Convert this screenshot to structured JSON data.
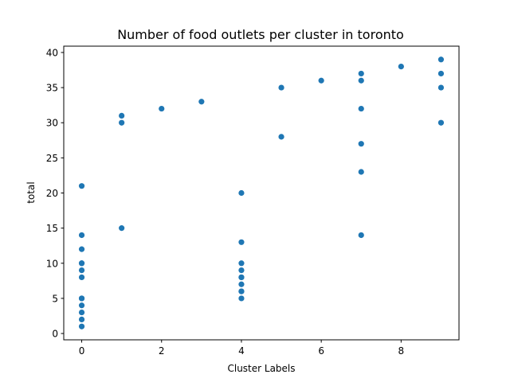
{
  "chart_data": {
    "type": "scatter",
    "title": "Number of food outlets per cluster in toronto",
    "xlabel": "Cluster Labels",
    "ylabel": "total",
    "xlim": [
      -0.45,
      9.45
    ],
    "ylim": [
      -0.9,
      40.9
    ],
    "xticks": [
      0,
      2,
      4,
      6,
      8
    ],
    "yticks": [
      0,
      5,
      10,
      15,
      20,
      25,
      30,
      35,
      40
    ],
    "grid": false,
    "color": "#1f77b4",
    "series": [
      {
        "x": [
          0,
          0,
          0,
          0,
          0,
          0,
          0,
          0,
          0,
          0,
          0,
          0,
          0,
          1,
          1,
          1,
          2,
          3,
          4,
          4,
          4,
          4,
          4,
          4,
          4,
          4,
          4,
          4,
          5,
          5,
          6,
          7,
          7,
          7,
          7,
          7,
          7,
          8,
          9,
          9,
          9,
          9
        ],
        "y": [
          1,
          2,
          3,
          4,
          5,
          8,
          9,
          10,
          12,
          14,
          21,
          5,
          10,
          15,
          30,
          31,
          32,
          33,
          5,
          6,
          7,
          8,
          9,
          10,
          13,
          20,
          8,
          6,
          28,
          35,
          36,
          14,
          23,
          27,
          32,
          36,
          37,
          38,
          30,
          35,
          37,
          39
        ]
      }
    ]
  }
}
